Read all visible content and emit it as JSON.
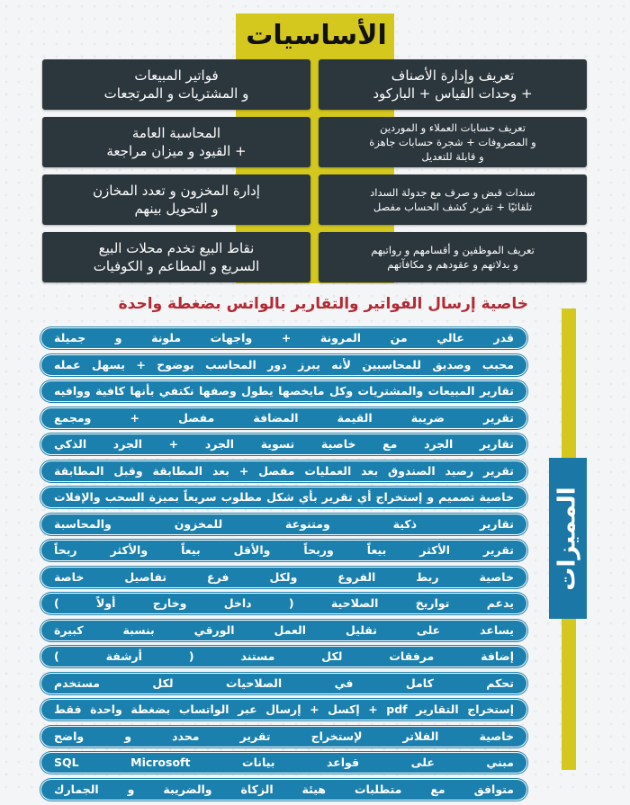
{
  "basics": {
    "title": "الأساسيات",
    "items": [
      {
        "text": "تعريف وإدارة الأصناف\n+ وحدات القياس + الباركود",
        "small": false
      },
      {
        "text": "فواتير المبيعات\nو المشتريات و المرتجعات",
        "small": false
      },
      {
        "text": "تعريف حسابات العملاء و الموردين\nو المصروفات + شجرة حسابات جاهزة\nو قابلة للتعديل",
        "small": true
      },
      {
        "text": "المحاسبة العامة\n+ القيود و ميزان مراجعة",
        "small": false
      },
      {
        "text": "سندات قبض و صرف مع جدولة السداد\nتلقائيًا + تقرير كشف الحساب مفصل",
        "small": true
      },
      {
        "text": "إدارة المخزون و تعدد المخازن\nو التحويل بينهم",
        "small": false
      },
      {
        "text": "تعريف الموظفين و أقسامهم و رواتبهم\nو بدلاتهم و عقودهم و مكافآتهم",
        "small": true
      },
      {
        "text": "نقاط البيع تخدم محلات البيع\nالسريع و المطاعم و الكوفيات",
        "small": false
      }
    ]
  },
  "whatsapp_heading": "خاصية إرسال الفواتير والتقارير بالواتس بضغطة واحدة",
  "features": {
    "title": "المميزات",
    "items": [
      "قدر عالي من المرونة + واجهات ملونة و جميلة",
      "محبب وصديق للمحاسبين لأنه يبرز دور المحاسب بوضوح + يسهل عمله",
      "تقارير المبيعات والمشتريات وكل مايخصها يطول وصفها نكتفي بأنها كافية ووافيه",
      "تقرير ضريبة القيمة المضافة مفصل + ومجمع",
      "تقارير الجرد مع خاصية تسوية الجرد + الجرد الذكي",
      "تقرير رصيد الصندوق بعد العمليات مفصل + بعد المطابقة وقبل المطابقة",
      "خاصية تصميم و إستخراج أي تقرير بأي شكل مطلوب سريعاً بميزة السحب والإفلات",
      "تقارير ذكية ومتنوعة للمخزون والمحاسبة",
      "تقرير الأكثر بيعاً وربحاً والأقل بيعاً والأكثر ربحاً",
      "خاصية ربط الفروع ولكل فرع تفاصيل خاصة",
      "يدعم تواريخ الصلاحية ( داخل وخارج أولاً )",
      "يساعد على تقليل العمل الورقي بنسبة كبيرة",
      "إضافة مرفقات لكل مستند ( أرشفة )",
      "تحكم كامل في الصلاحيات لكل مستخدم",
      "إستخراج التقارير pdf + إكسل + إرسال عبر الواتساب بضغطة واحدة فقط",
      "خاصية الفلاتر لإستخراج تقرير محدد و واضح",
      "مبني على قواعد بيانات SQL Microsoft",
      "متوافق مع متطلبات هيئة الزكاة والضريبة و الجمارك"
    ]
  },
  "colors": {
    "yellow": "#d4c81e",
    "dark_box": "#2b363d",
    "blue": "#1b80ad",
    "red": "#b22a33"
  }
}
